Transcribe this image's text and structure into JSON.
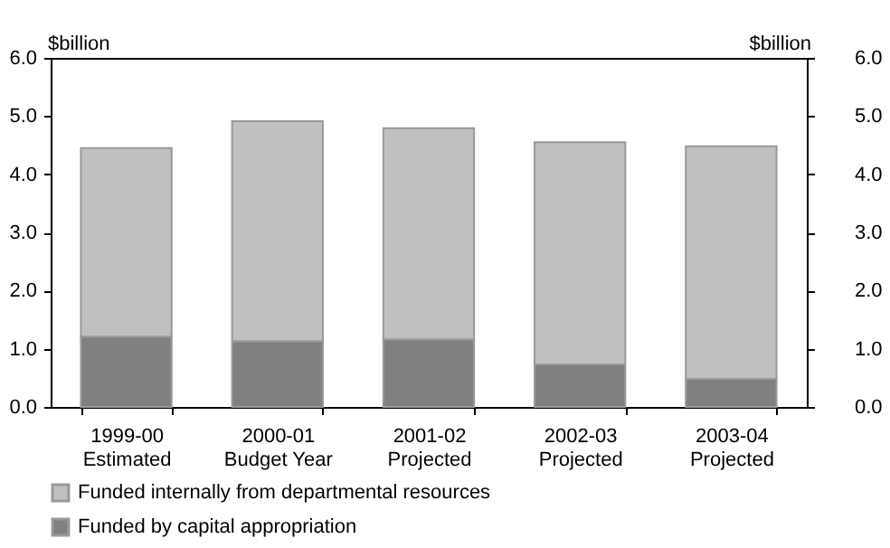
{
  "chart_data": {
    "type": "bar",
    "stacked": true,
    "ylabel": "$billion",
    "y2label": "$billion",
    "categories": [
      "1999-00\nEstimated",
      "2000-01\nBudget Year",
      "2001-02\nProjected",
      "2002-03\nProjected",
      "2003-04\nProjected"
    ],
    "series": [
      {
        "name": "Funded by capital appropriation",
        "color": "#808080",
        "values": [
          1.21,
          1.13,
          1.16,
          0.73,
          0.48
        ]
      },
      {
        "name": "Funded internally from departmental resources",
        "color": "#c0c0c0",
        "values": [
          3.24,
          3.78,
          3.63,
          3.82,
          4.0
        ]
      }
    ],
    "ylim": [
      0,
      6
    ],
    "yticks": [
      {
        "value": 0,
        "label": "0.0"
      },
      {
        "value": 1,
        "label": "1.0"
      },
      {
        "value": 2,
        "label": "2.0"
      },
      {
        "value": 3,
        "label": "3.0"
      },
      {
        "value": 4,
        "label": "4.0"
      },
      {
        "value": 5,
        "label": "5.0"
      },
      {
        "value": 6,
        "label": "6.0"
      }
    ],
    "y2lim": [
      0,
      6
    ],
    "y2ticks": [
      {
        "value": 0,
        "label": "0.0"
      },
      {
        "value": 1,
        "label": "1.0"
      },
      {
        "value": 2,
        "label": "2.0"
      },
      {
        "value": 3,
        "label": "3.0"
      },
      {
        "value": 4,
        "label": "4.0"
      },
      {
        "value": 5,
        "label": "5.0"
      },
      {
        "value": 6,
        "label": "6.0"
      }
    ],
    "grid": false,
    "legend": "bottom"
  }
}
